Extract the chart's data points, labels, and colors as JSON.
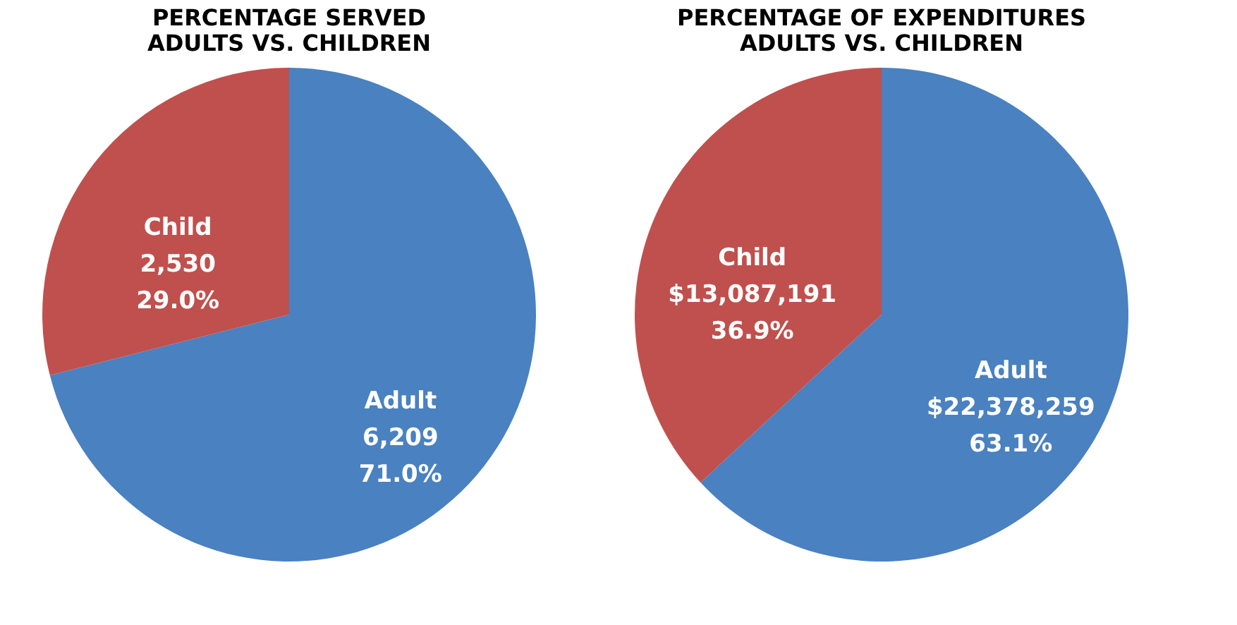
{
  "chart_data": [
    {
      "type": "pie",
      "title": "PERCENTAGE SERVED\nADULTS VS. CHILDREN",
      "categories": [
        "Adult",
        "Child"
      ],
      "values": [
        6209,
        2530
      ],
      "colors": [
        "#4a81c0",
        "#c0504d"
      ],
      "value_labels": [
        "6,209\n71.0%",
        "2,530\n29.0%"
      ],
      "legend": false
    },
    {
      "type": "pie",
      "title": "PERCENTAGE OF EXPENDITURES\nADULTS VS. CHILDREN",
      "categories": [
        "Adult",
        "Child"
      ],
      "values": [
        22378259,
        13087191
      ],
      "colors": [
        "#4a81c0",
        "#c0504d"
      ],
      "value_labels": [
        "$22,378,259\n63.1%",
        "$13,087,191\n36.9%"
      ],
      "legend": false
    }
  ]
}
